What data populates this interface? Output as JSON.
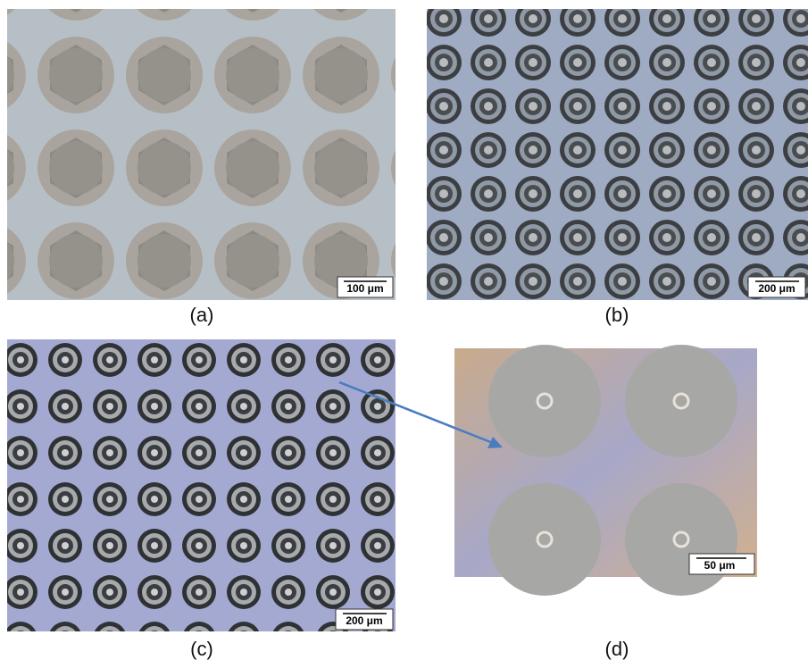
{
  "panels": [
    {
      "label": "(a)",
      "scale_bar": "100 μm"
    },
    {
      "label": "(b)",
      "scale_bar": "200 μm"
    },
    {
      "label": "(c)",
      "scale_bar": "200 μm"
    },
    {
      "label": "(d)",
      "scale_bar": "50 μm"
    }
  ]
}
